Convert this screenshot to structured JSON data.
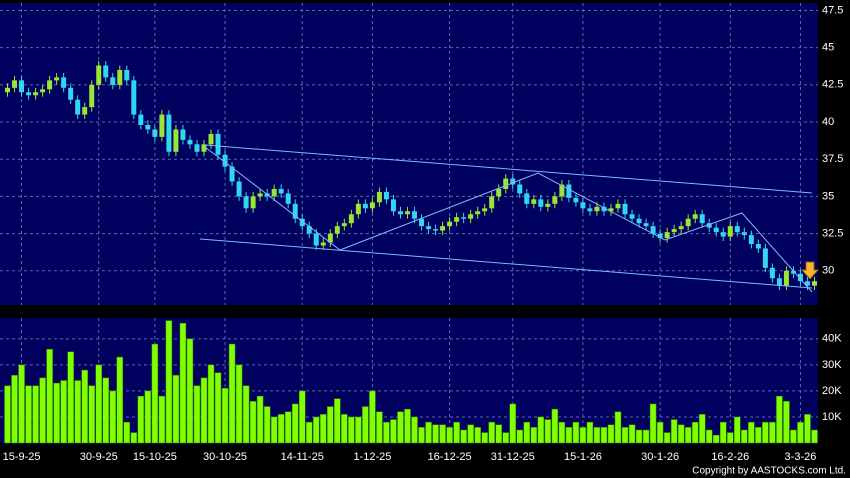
{
  "chart_data": [
    {
      "type": "candlestick",
      "categories": [
        null,
        null,
        "15-9-25",
        null,
        null,
        null,
        null,
        null,
        null,
        null,
        null,
        null,
        null,
        "30-9-25",
        null,
        null,
        null,
        null,
        null,
        null,
        null,
        "15-10-25",
        null,
        null,
        null,
        null,
        null,
        null,
        null,
        null,
        null,
        "30-10-25",
        null,
        null,
        null,
        null,
        null,
        null,
        null,
        null,
        null,
        null,
        "14-11-25",
        null,
        null,
        null,
        null,
        null,
        null,
        null,
        null,
        null,
        "1-12-25",
        null,
        null,
        null,
        null,
        null,
        null,
        null,
        null,
        null,
        null,
        "16-12-25",
        null,
        null,
        null,
        null,
        null,
        null,
        null,
        null,
        "31-12-25",
        null,
        null,
        null,
        null,
        null,
        null,
        null,
        null,
        null,
        "15-1-26",
        null,
        null,
        null,
        null,
        null,
        null,
        null,
        null,
        null,
        null,
        "30-1-26",
        null,
        null,
        null,
        null,
        null,
        null,
        null,
        null,
        null,
        "16-2-26",
        null,
        null,
        null,
        null,
        null,
        null,
        null,
        null,
        null,
        "3-3-26",
        null,
        null
      ],
      "ohlc": [
        [
          42.0,
          42.6,
          41.7,
          42.3
        ],
        [
          42.3,
          43.1,
          42.0,
          42.8
        ],
        [
          42.8,
          43.1,
          41.7,
          42.0
        ],
        [
          42.0,
          42.3,
          41.5,
          41.8
        ],
        [
          41.8,
          42.3,
          41.5,
          42.0
        ],
        [
          42.0,
          42.5,
          41.7,
          42.2
        ],
        [
          42.2,
          43.1,
          41.9,
          42.8
        ],
        [
          42.8,
          43.3,
          42.5,
          43.0
        ],
        [
          43.0,
          43.3,
          42.0,
          42.3
        ],
        [
          42.3,
          42.6,
          41.2,
          41.5
        ],
        [
          41.5,
          41.8,
          40.2,
          40.5
        ],
        [
          40.5,
          41.3,
          40.2,
          41.0
        ],
        [
          41.0,
          42.8,
          40.7,
          42.5
        ],
        [
          42.5,
          44.1,
          42.2,
          43.8
        ],
        [
          43.8,
          44.1,
          42.7,
          43.0
        ],
        [
          43.0,
          43.3,
          42.2,
          42.5
        ],
        [
          42.5,
          43.8,
          42.2,
          43.5
        ],
        [
          43.5,
          43.8,
          42.5,
          42.8
        ],
        [
          42.8,
          43.1,
          40.2,
          40.5
        ],
        [
          40.5,
          40.8,
          39.5,
          39.8
        ],
        [
          39.8,
          40.1,
          39.2,
          39.5
        ],
        [
          39.5,
          39.8,
          38.7,
          39.0
        ],
        [
          39.0,
          40.8,
          38.7,
          40.5
        ],
        [
          40.5,
          40.8,
          37.7,
          38.0
        ],
        [
          38.0,
          39.8,
          37.7,
          39.5
        ],
        [
          39.5,
          39.8,
          38.5,
          38.8
        ],
        [
          38.8,
          39.1,
          38.2,
          38.5
        ],
        [
          38.5,
          38.8,
          37.7,
          38.0
        ],
        [
          38.0,
          38.8,
          37.7,
          38.5
        ],
        [
          38.5,
          39.5,
          38.2,
          39.2
        ],
        [
          39.2,
          39.5,
          37.5,
          37.8
        ],
        [
          37.8,
          38.1,
          36.7,
          37.0
        ],
        [
          37.0,
          37.3,
          35.7,
          36.0
        ],
        [
          36.0,
          36.3,
          34.7,
          35.0
        ],
        [
          35.0,
          35.3,
          33.9,
          34.2
        ],
        [
          34.2,
          35.3,
          33.9,
          35.0
        ],
        [
          35.0,
          35.5,
          34.7,
          35.2
        ],
        [
          35.2,
          35.5,
          34.7,
          35.0
        ],
        [
          35.0,
          35.8,
          34.7,
          35.5
        ],
        [
          35.5,
          35.8,
          34.9,
          35.2
        ],
        [
          35.2,
          35.5,
          34.2,
          34.5
        ],
        [
          34.5,
          34.8,
          33.2,
          33.5
        ],
        [
          33.5,
          33.8,
          32.7,
          33.0
        ],
        [
          33.0,
          33.3,
          32.2,
          32.5
        ],
        [
          32.5,
          32.8,
          31.4,
          31.7
        ],
        [
          31.7,
          32.2,
          31.4,
          31.9
        ],
        [
          31.9,
          32.8,
          31.6,
          32.5
        ],
        [
          32.5,
          33.3,
          32.2,
          33.0
        ],
        [
          33.0,
          33.5,
          32.7,
          33.2
        ],
        [
          33.2,
          34.1,
          32.9,
          33.8
        ],
        [
          33.8,
          34.8,
          33.5,
          34.5
        ],
        [
          34.5,
          34.8,
          33.9,
          34.2
        ],
        [
          34.2,
          34.9,
          33.9,
          34.6
        ],
        [
          34.6,
          35.6,
          34.3,
          35.3
        ],
        [
          35.3,
          35.6,
          34.5,
          34.8
        ],
        [
          34.8,
          35.1,
          33.7,
          34.0
        ],
        [
          34.0,
          34.3,
          33.5,
          33.8
        ],
        [
          33.8,
          34.3,
          33.5,
          34.0
        ],
        [
          34.0,
          34.3,
          33.2,
          33.5
        ],
        [
          33.5,
          33.8,
          32.7,
          33.0
        ],
        [
          33.0,
          33.3,
          32.5,
          32.8
        ],
        [
          32.8,
          33.1,
          32.4,
          32.7
        ],
        [
          32.7,
          33.3,
          32.4,
          33.0
        ],
        [
          33.0,
          33.6,
          32.7,
          33.3
        ],
        [
          33.3,
          33.9,
          33.0,
          33.6
        ],
        [
          33.6,
          33.9,
          33.2,
          33.5
        ],
        [
          33.5,
          34.1,
          33.2,
          33.8
        ],
        [
          33.8,
          34.3,
          33.5,
          34.0
        ],
        [
          34.0,
          34.5,
          33.7,
          34.2
        ],
        [
          34.2,
          35.3,
          33.9,
          35.0
        ],
        [
          35.0,
          35.8,
          34.7,
          35.5
        ],
        [
          35.5,
          36.5,
          35.2,
          36.2
        ],
        [
          36.2,
          36.5,
          35.5,
          35.8
        ],
        [
          35.8,
          36.1,
          34.9,
          35.2
        ],
        [
          35.2,
          35.5,
          34.2,
          34.5
        ],
        [
          34.5,
          35.1,
          34.2,
          34.8
        ],
        [
          34.8,
          35.1,
          34.0,
          34.3
        ],
        [
          34.3,
          34.8,
          34.0,
          34.5
        ],
        [
          34.5,
          35.3,
          34.2,
          35.0
        ],
        [
          35.0,
          36.1,
          34.7,
          35.8
        ],
        [
          35.8,
          36.1,
          34.6,
          34.9
        ],
        [
          34.9,
          35.2,
          34.3,
          34.6
        ],
        [
          34.6,
          34.9,
          33.9,
          34.2
        ],
        [
          34.2,
          34.5,
          33.7,
          34.0
        ],
        [
          34.0,
          34.6,
          33.7,
          34.3
        ],
        [
          34.3,
          34.6,
          33.7,
          34.0
        ],
        [
          34.0,
          34.5,
          33.7,
          34.2
        ],
        [
          34.2,
          34.8,
          33.9,
          34.5
        ],
        [
          34.5,
          34.8,
          33.5,
          33.8
        ],
        [
          33.8,
          34.1,
          33.2,
          33.5
        ],
        [
          33.5,
          33.8,
          32.9,
          33.2
        ],
        [
          33.2,
          33.5,
          32.7,
          33.0
        ],
        [
          33.0,
          33.3,
          32.2,
          32.5
        ],
        [
          32.5,
          32.8,
          31.9,
          32.2
        ],
        [
          32.2,
          32.9,
          31.9,
          32.6
        ],
        [
          32.6,
          33.1,
          32.3,
          32.8
        ],
        [
          32.8,
          33.3,
          32.5,
          33.0
        ],
        [
          33.0,
          33.8,
          32.7,
          33.5
        ],
        [
          33.5,
          34.1,
          33.2,
          33.8
        ],
        [
          33.8,
          34.1,
          32.9,
          33.2
        ],
        [
          33.2,
          33.5,
          32.6,
          32.9
        ],
        [
          32.9,
          33.2,
          32.3,
          32.6
        ],
        [
          32.6,
          32.9,
          32.0,
          32.3
        ],
        [
          32.3,
          33.3,
          32.0,
          33.0
        ],
        [
          33.0,
          33.3,
          32.3,
          32.6
        ],
        [
          32.6,
          32.9,
          32.1,
          32.4
        ],
        [
          32.4,
          32.7,
          31.5,
          31.8
        ],
        [
          31.8,
          32.1,
          31.2,
          31.5
        ],
        [
          31.5,
          31.8,
          29.9,
          30.2
        ],
        [
          30.2,
          30.5,
          29.2,
          29.5
        ],
        [
          29.5,
          29.8,
          28.7,
          29.0
        ],
        [
          29.0,
          30.3,
          28.7,
          30.0
        ],
        [
          30.0,
          30.3,
          29.5,
          29.8
        ],
        [
          29.8,
          30.1,
          29.0,
          29.3
        ],
        [
          29.3,
          29.6,
          28.7,
          29.0
        ],
        [
          29.0,
          29.6,
          28.7,
          29.3
        ]
      ],
      "up_color": "#99e633",
      "down_color": "#33d6f0",
      "ylim": [
        27.7,
        48
      ],
      "yticks": [
        30,
        32.5,
        35,
        37.5,
        40,
        42.5,
        45,
        47.5
      ],
      "grid": true
    },
    {
      "type": "bar",
      "values": [
        22000,
        26000,
        30000,
        22000,
        22000,
        25000,
        36000,
        23000,
        24000,
        35000,
        24000,
        28000,
        22000,
        30000,
        25000,
        20000,
        33000,
        8000,
        4000,
        18000,
        20000,
        38000,
        18000,
        47000,
        26000,
        46000,
        40000,
        22000,
        25000,
        30000,
        27000,
        21000,
        38000,
        30000,
        22000,
        16000,
        18000,
        14000,
        10000,
        11000,
        12000,
        15000,
        20000,
        8000,
        10000,
        11000,
        14000,
        17000,
        11000,
        10000,
        10000,
        14000,
        20000,
        12000,
        8000,
        9000,
        12000,
        13000,
        10000,
        6000,
        8000,
        7000,
        7000,
        6000,
        8000,
        5000,
        7000,
        6000,
        4000,
        8000,
        7000,
        4000,
        15000,
        5000,
        8000,
        6000,
        10000,
        9000,
        13000,
        8000,
        6000,
        8000,
        6000,
        8000,
        6000,
        6000,
        7000,
        12000,
        6000,
        7000,
        5000,
        5000,
        15000,
        8000,
        4000,
        9000,
        7000,
        6000,
        8000,
        11000,
        5000,
        3000,
        8000,
        4000,
        10000,
        5000,
        8000,
        6000,
        8000,
        8000,
        18000,
        16000,
        5000,
        8000,
        11000,
        5000
      ],
      "color": "#80ff00",
      "ylim": [
        0,
        48000
      ],
      "yticks": [
        {
          "value": 10000,
          "label": "10K"
        },
        {
          "value": 20000,
          "label": "20K"
        },
        {
          "value": 30000,
          "label": "30K"
        },
        {
          "value": 40000,
          "label": "40K"
        }
      ],
      "grid": true
    }
  ],
  "copyright": "Copyright by AASTOCKS.com Ltd."
}
